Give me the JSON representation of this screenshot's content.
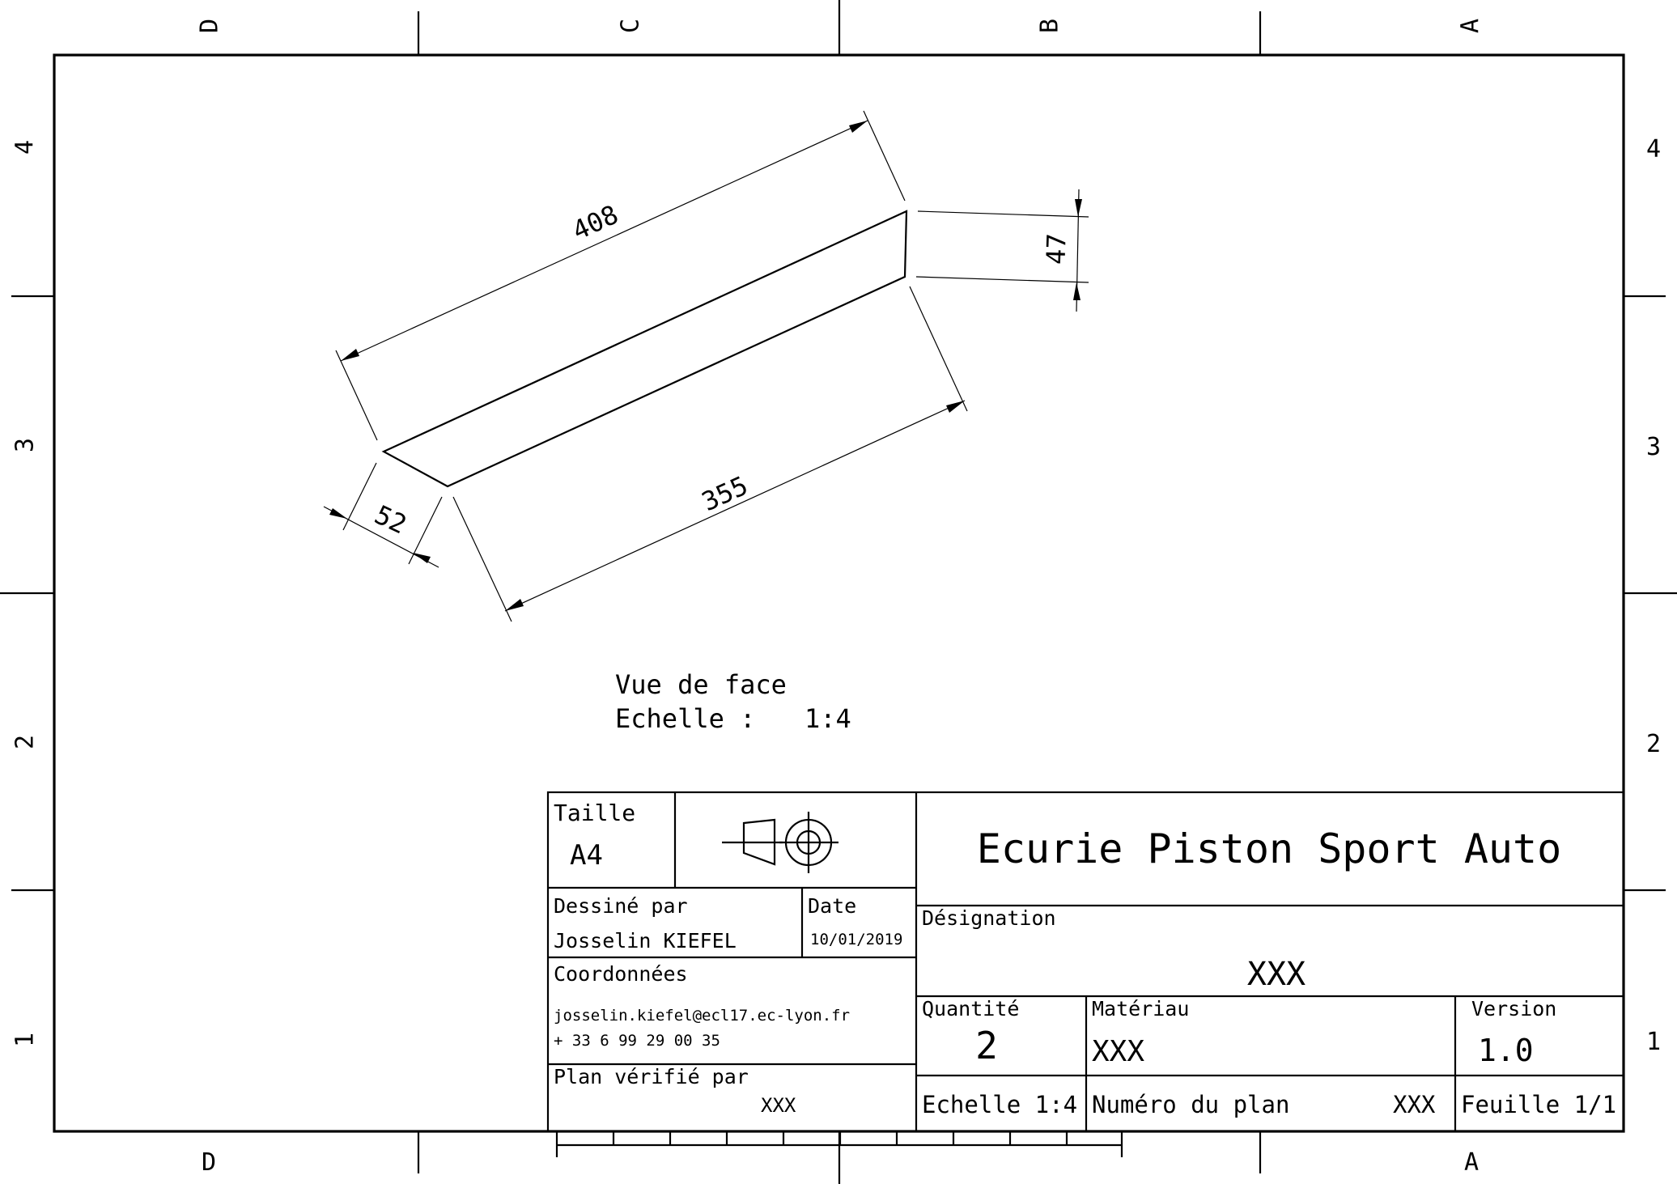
{
  "sheet": {
    "zones_cols_top": [
      "D",
      "C",
      "B",
      "A"
    ],
    "zones_cols_bottom": [
      "D",
      "A"
    ],
    "zones_rows": [
      "4",
      "3",
      "2",
      "1"
    ]
  },
  "view": {
    "name": "Vue de face",
    "scale_label": "Echelle :",
    "scale_value": "1:4",
    "dimensions": {
      "length_top": "408",
      "length_bottom": "355",
      "height_right": "47",
      "height_left": "52"
    }
  },
  "title_block": {
    "size_label": "Taille",
    "size_value": "A4",
    "drawn_by_label": "Dessiné par",
    "drawn_by_value": "Josselin KIEFEL",
    "date_label": "Date",
    "date_value": "10/01/2019",
    "contact_label": "Coordonnées",
    "contact_email": "josselin.kiefel@ecl17.ec-lyon.fr",
    "contact_phone": "+ 33 6 99 29 00 35",
    "checked_by_label": "Plan vérifié par",
    "checked_by_value": "XXX",
    "company": "Ecurie Piston Sport Auto",
    "designation_label": "Désignation",
    "designation_value": "XXX",
    "quantity_label": "Quantité",
    "quantity_value": "2",
    "material_label": "Matériau",
    "material_value": "XXX",
    "version_label": "Version",
    "version_value": "1.0",
    "scale_label": "Echelle 1:4",
    "plan_number_label": "Numéro du plan",
    "plan_number_value": "XXX",
    "sheet_label": "Feuille 1/1"
  }
}
